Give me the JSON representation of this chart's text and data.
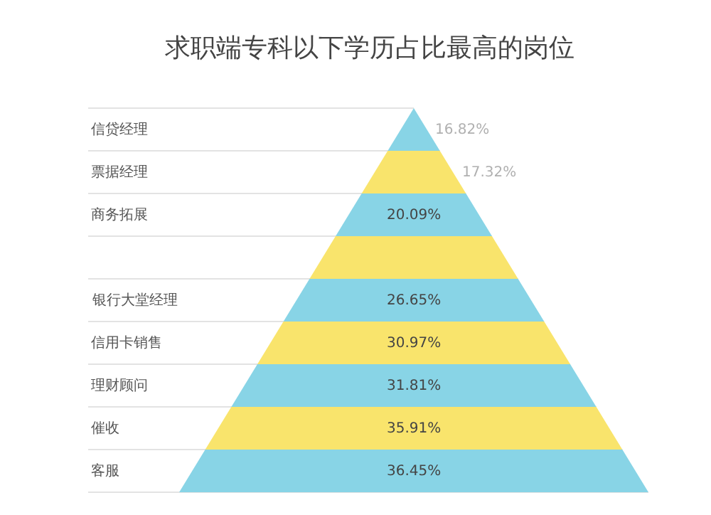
{
  "chart_data": {
    "type": "other",
    "title": "求职端专科以下学历占比最高的岗位",
    "categories": [
      "信贷经理",
      "票据经理",
      "商务拓展",
      null,
      "银行大堂经理",
      "信用卡销售",
      "理财顾问",
      "催收",
      "客服"
    ],
    "values": [
      16.82,
      17.32,
      20.09,
      null,
      26.65,
      30.97,
      31.81,
      35.91,
      36.45
    ],
    "value_labels": [
      "16.82%",
      "17.32%",
      "20.09%",
      null,
      "26.65%",
      "30.97%",
      "31.81%",
      "35.91%",
      "36.45%"
    ],
    "colors": [
      "#88d4e6",
      "#f9e46c",
      "#88d4e6",
      "#f9e46c",
      "#88d4e6",
      "#f9e46c",
      "#88d4e6",
      "#f9e46c",
      "#88d4e6"
    ]
  }
}
